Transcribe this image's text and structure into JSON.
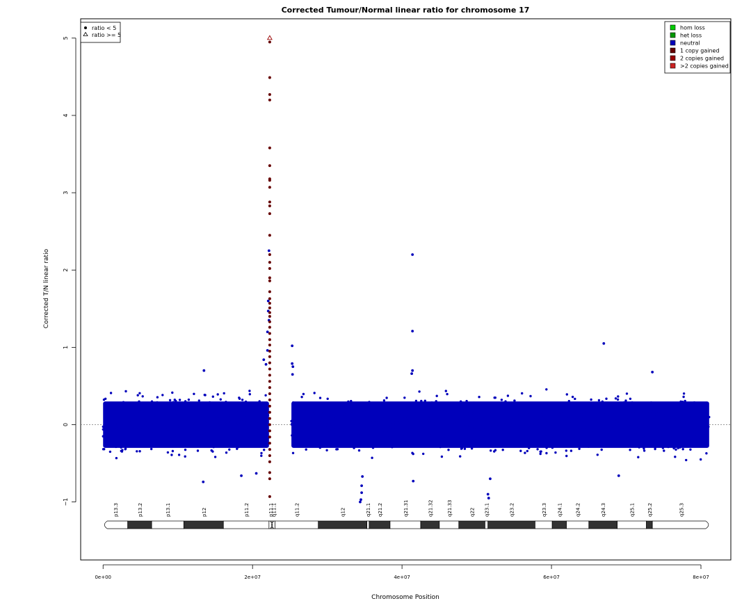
{
  "chart_data": {
    "type": "scatter",
    "title": "Corrected Tumour/Normal linear ratio for chromosome  17",
    "xlabel": "Chromosome Position",
    "ylabel": "Corrected T/N linear ratio",
    "xlim": [
      -3000000,
      84000000
    ],
    "ylim": [
      -1.75,
      5.25
    ],
    "x_ticks": [
      0,
      20000000,
      40000000,
      60000000,
      80000000
    ],
    "x_tick_labels": [
      "0e+00",
      "2e+07",
      "4e+07",
      "6e+07",
      "8e+07"
    ],
    "y_ticks": [
      -1,
      0,
      1,
      2,
      3,
      4,
      5
    ],
    "y_tick_labels": [
      "−1",
      "0",
      "1",
      "2",
      "3",
      "4",
      "5"
    ],
    "reference_line": 0,
    "point_legend": {
      "placement": "top-left",
      "entries": [
        {
          "symbol": "filled-circle",
          "label": "ratio < 5"
        },
        {
          "symbol": "open-triangle",
          "label": "ratio >= 5"
        }
      ]
    },
    "legend": {
      "placement": "top-right",
      "entries": [
        {
          "label": "hom loss",
          "color": "#00cc00"
        },
        {
          "label": "het loss",
          "color": "#009900"
        },
        {
          "label": "neutral",
          "color": "#0000bb"
        },
        {
          "label": "1 copy gained",
          "color": "#660000"
        },
        {
          "label": "2 copies gained",
          "color": "#990000"
        },
        {
          "label": ">2 copies gained",
          "color": "#cc2222"
        }
      ]
    },
    "series": [
      {
        "name": "neutral",
        "color": "#0000bb",
        "dense_band": {
          "x_ranges": [
            [
              0,
              22200000
            ],
            [
              25200000,
              81100000
            ]
          ],
          "y_range": [
            -0.3,
            0.3
          ]
        },
        "outliers": [
          {
            "x": 13400000,
            "y": -0.74
          },
          {
            "x": 13500000,
            "y": 0.7
          },
          {
            "x": 18500000,
            "y": -0.66
          },
          {
            "x": 20500000,
            "y": -0.63
          },
          {
            "x": 21500000,
            "y": 0.84
          },
          {
            "x": 21800000,
            "y": 0.78
          },
          {
            "x": 22000000,
            "y": 0.96
          },
          {
            "x": 22000000,
            "y": 1.2
          },
          {
            "x": 22100000,
            "y": 1.47
          },
          {
            "x": 22100000,
            "y": 1.6
          },
          {
            "x": 22200000,
            "y": 2.25
          },
          {
            "x": 22200000,
            "y": 1.35
          },
          {
            "x": 25300000,
            "y": 1.02
          },
          {
            "x": 25300000,
            "y": 0.79
          },
          {
            "x": 25400000,
            "y": 0.75
          },
          {
            "x": 25350000,
            "y": 0.65
          },
          {
            "x": 34600000,
            "y": -0.79
          },
          {
            "x": 34600000,
            "y": -0.88
          },
          {
            "x": 34500000,
            "y": -0.97
          },
          {
            "x": 34400000,
            "y": -1.0
          },
          {
            "x": 34700000,
            "y": -0.67
          },
          {
            "x": 41400000,
            "y": 2.2
          },
          {
            "x": 41400000,
            "y": 1.21
          },
          {
            "x": 41400000,
            "y": 0.7
          },
          {
            "x": 41300000,
            "y": 0.66
          },
          {
            "x": 41500000,
            "y": -0.73
          },
          {
            "x": 51500000,
            "y": -0.9
          },
          {
            "x": 51600000,
            "y": -0.95
          },
          {
            "x": 51800000,
            "y": -0.7
          },
          {
            "x": 67000000,
            "y": 1.05
          },
          {
            "x": 69000000,
            "y": -0.66
          },
          {
            "x": 73500000,
            "y": 0.68
          }
        ]
      },
      {
        "name": "1 copy gained",
        "color": "#660000",
        "points": [
          {
            "x": 22300000,
            "y": 4.95
          },
          {
            "x": 22300000,
            "y": 4.49
          },
          {
            "x": 22300000,
            "y": 4.27
          },
          {
            "x": 22300000,
            "y": 4.2
          },
          {
            "x": 22300000,
            "y": 3.58
          },
          {
            "x": 22300000,
            "y": 3.35
          },
          {
            "x": 22300000,
            "y": 3.18
          },
          {
            "x": 22300000,
            "y": 3.16
          },
          {
            "x": 22300000,
            "y": 3.07
          },
          {
            "x": 22300000,
            "y": 2.88
          },
          {
            "x": 22300000,
            "y": 2.83
          },
          {
            "x": 22300000,
            "y": 2.73
          },
          {
            "x": 22300000,
            "y": 2.45
          },
          {
            "x": 22300000,
            "y": 2.2
          },
          {
            "x": 22300000,
            "y": 2.1
          },
          {
            "x": 22300000,
            "y": 2.02
          },
          {
            "x": 22300000,
            "y": 1.9
          },
          {
            "x": 22300000,
            "y": 1.86
          },
          {
            "x": 22300000,
            "y": 1.72
          },
          {
            "x": 22300000,
            "y": 1.63
          },
          {
            "x": 22300000,
            "y": 1.57
          },
          {
            "x": 22300000,
            "y": 1.51
          },
          {
            "x": 22300000,
            "y": 1.45
          },
          {
            "x": 22300000,
            "y": 1.4
          },
          {
            "x": 22300000,
            "y": 1.33
          },
          {
            "x": 22300000,
            "y": 1.26
          },
          {
            "x": 22300000,
            "y": 1.18
          },
          {
            "x": 22300000,
            "y": 1.1
          },
          {
            "x": 22300000,
            "y": 1.03
          },
          {
            "x": 22300000,
            "y": 0.95
          },
          {
            "x": 22300000,
            "y": 0.88
          },
          {
            "x": 22300000,
            "y": 0.8
          },
          {
            "x": 22300000,
            "y": 0.72
          },
          {
            "x": 22300000,
            "y": 0.64
          },
          {
            "x": 22300000,
            "y": 0.56
          },
          {
            "x": 22300000,
            "y": 0.48
          },
          {
            "x": 22300000,
            "y": 0.4
          },
          {
            "x": 22300000,
            "y": 0.32
          },
          {
            "x": 22300000,
            "y": 0.24
          },
          {
            "x": 22300000,
            "y": 0.16
          },
          {
            "x": 22300000,
            "y": 0.08
          },
          {
            "x": 22300000,
            "y": 0.0
          },
          {
            "x": 22300000,
            "y": -0.08
          },
          {
            "x": 22300000,
            "y": -0.16
          },
          {
            "x": 22300000,
            "y": -0.24
          },
          {
            "x": 22300000,
            "y": -0.32
          },
          {
            "x": 22300000,
            "y": -0.4
          },
          {
            "x": 22300000,
            "y": -0.48
          },
          {
            "x": 22300000,
            "y": -0.62
          },
          {
            "x": 22300000,
            "y": -0.7
          },
          {
            "x": 22300000,
            "y": -0.93
          }
        ]
      },
      {
        "name": "ratio >= 5",
        "color": "#990000",
        "marker": "open-triangle",
        "points": [
          {
            "x": 22300000,
            "y": 5.0
          }
        ]
      }
    ],
    "ideogram": {
      "chrom_end": 81200000,
      "bands": [
        {
          "label": "p13.3",
          "start": 0,
          "end": 3300000,
          "stain": "gneg"
        },
        {
          "label": "p13.2",
          "start": 3300000,
          "end": 6500000,
          "stain": "gpos"
        },
        {
          "label": "p13.1",
          "start": 6500000,
          "end": 10800000,
          "stain": "gneg"
        },
        {
          "label": "p12",
          "start": 10800000,
          "end": 16100000,
          "stain": "gpos"
        },
        {
          "label": "p11.2",
          "start": 16100000,
          "end": 22200000,
          "stain": "gneg"
        },
        {
          "label": "p11.1",
          "start": 22200000,
          "end": 22600000,
          "stain": "acen"
        },
        {
          "label": "q11.1",
          "start": 22600000,
          "end": 23000000,
          "stain": "acen"
        },
        {
          "label": "q11.2",
          "start": 23000000,
          "end": 28800000,
          "stain": "gneg"
        },
        {
          "label": "q12",
          "start": 28800000,
          "end": 35300000,
          "stain": "gpos"
        },
        {
          "label": "q21.1",
          "start": 35300000,
          "end": 35600000,
          "stain": "gneg"
        },
        {
          "label": "q21.2",
          "start": 35600000,
          "end": 38400000,
          "stain": "gpos"
        },
        {
          "label": "q21.31",
          "start": 38400000,
          "end": 42500000,
          "stain": "gneg"
        },
        {
          "label": "q21.32",
          "start": 42500000,
          "end": 45000000,
          "stain": "gpos"
        },
        {
          "label": "q21.33",
          "start": 45000000,
          "end": 47600000,
          "stain": "gneg"
        },
        {
          "label": "q22",
          "start": 47600000,
          "end": 51100000,
          "stain": "gpos"
        },
        {
          "label": "q23.1",
          "start": 51100000,
          "end": 51500000,
          "stain": "gneg"
        },
        {
          "label": "q23.2",
          "start": 51500000,
          "end": 57800000,
          "stain": "gpos"
        },
        {
          "label": "q23.3",
          "start": 57800000,
          "end": 60100000,
          "stain": "gneg"
        },
        {
          "label": "q24.1",
          "start": 60100000,
          "end": 62000000,
          "stain": "gpos"
        },
        {
          "label": "q24.2",
          "start": 62000000,
          "end": 65000000,
          "stain": "gneg"
        },
        {
          "label": "q24.3",
          "start": 65000000,
          "end": 68800000,
          "stain": "gpos"
        },
        {
          "label": "q25.1",
          "start": 68800000,
          "end": 72700000,
          "stain": "gneg"
        },
        {
          "label": "q25.2",
          "start": 72700000,
          "end": 73500000,
          "stain": "gpos"
        },
        {
          "label": "q25.3",
          "start": 73500000,
          "end": 81200000,
          "stain": "gneg"
        }
      ]
    }
  }
}
